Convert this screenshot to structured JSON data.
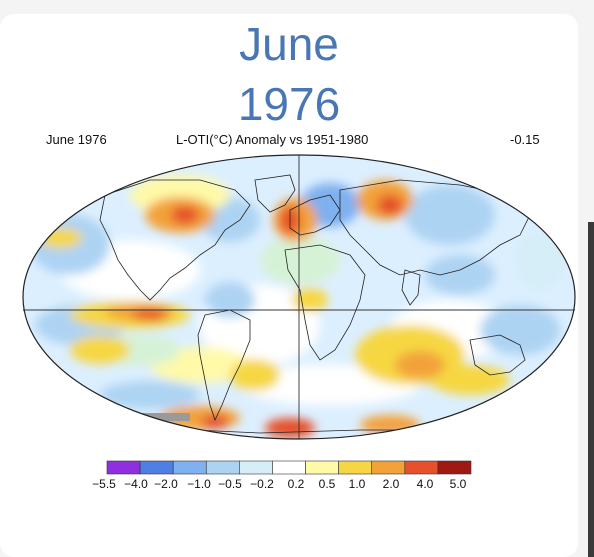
{
  "title_line1": "June",
  "title_line2": "1976",
  "header": {
    "left": "June 1976",
    "center": "L-OTI(°C) Anomaly vs 1951-1980",
    "right": "-0.15"
  },
  "colorbar": {
    "labels": [
      "−5.5",
      "−4.0",
      "−2.0",
      "−1.0",
      "−0.5",
      "−0.2",
      "0.2",
      "0.5",
      "1.0",
      "2.0",
      "4.0",
      "5.0"
    ],
    "colors": [
      "#8f2fe0",
      "#4f7fe3",
      "#7fb0ef",
      "#add3f3",
      "#d6eef8",
      "#ffffff",
      "#fff9a8",
      "#f6d743",
      "#f3a23a",
      "#e6502c",
      "#9e1a12"
    ]
  },
  "palette": {
    "title": "#4a77b4",
    "ocean_base": "#dcefff",
    "land_outline": "#222222"
  }
}
